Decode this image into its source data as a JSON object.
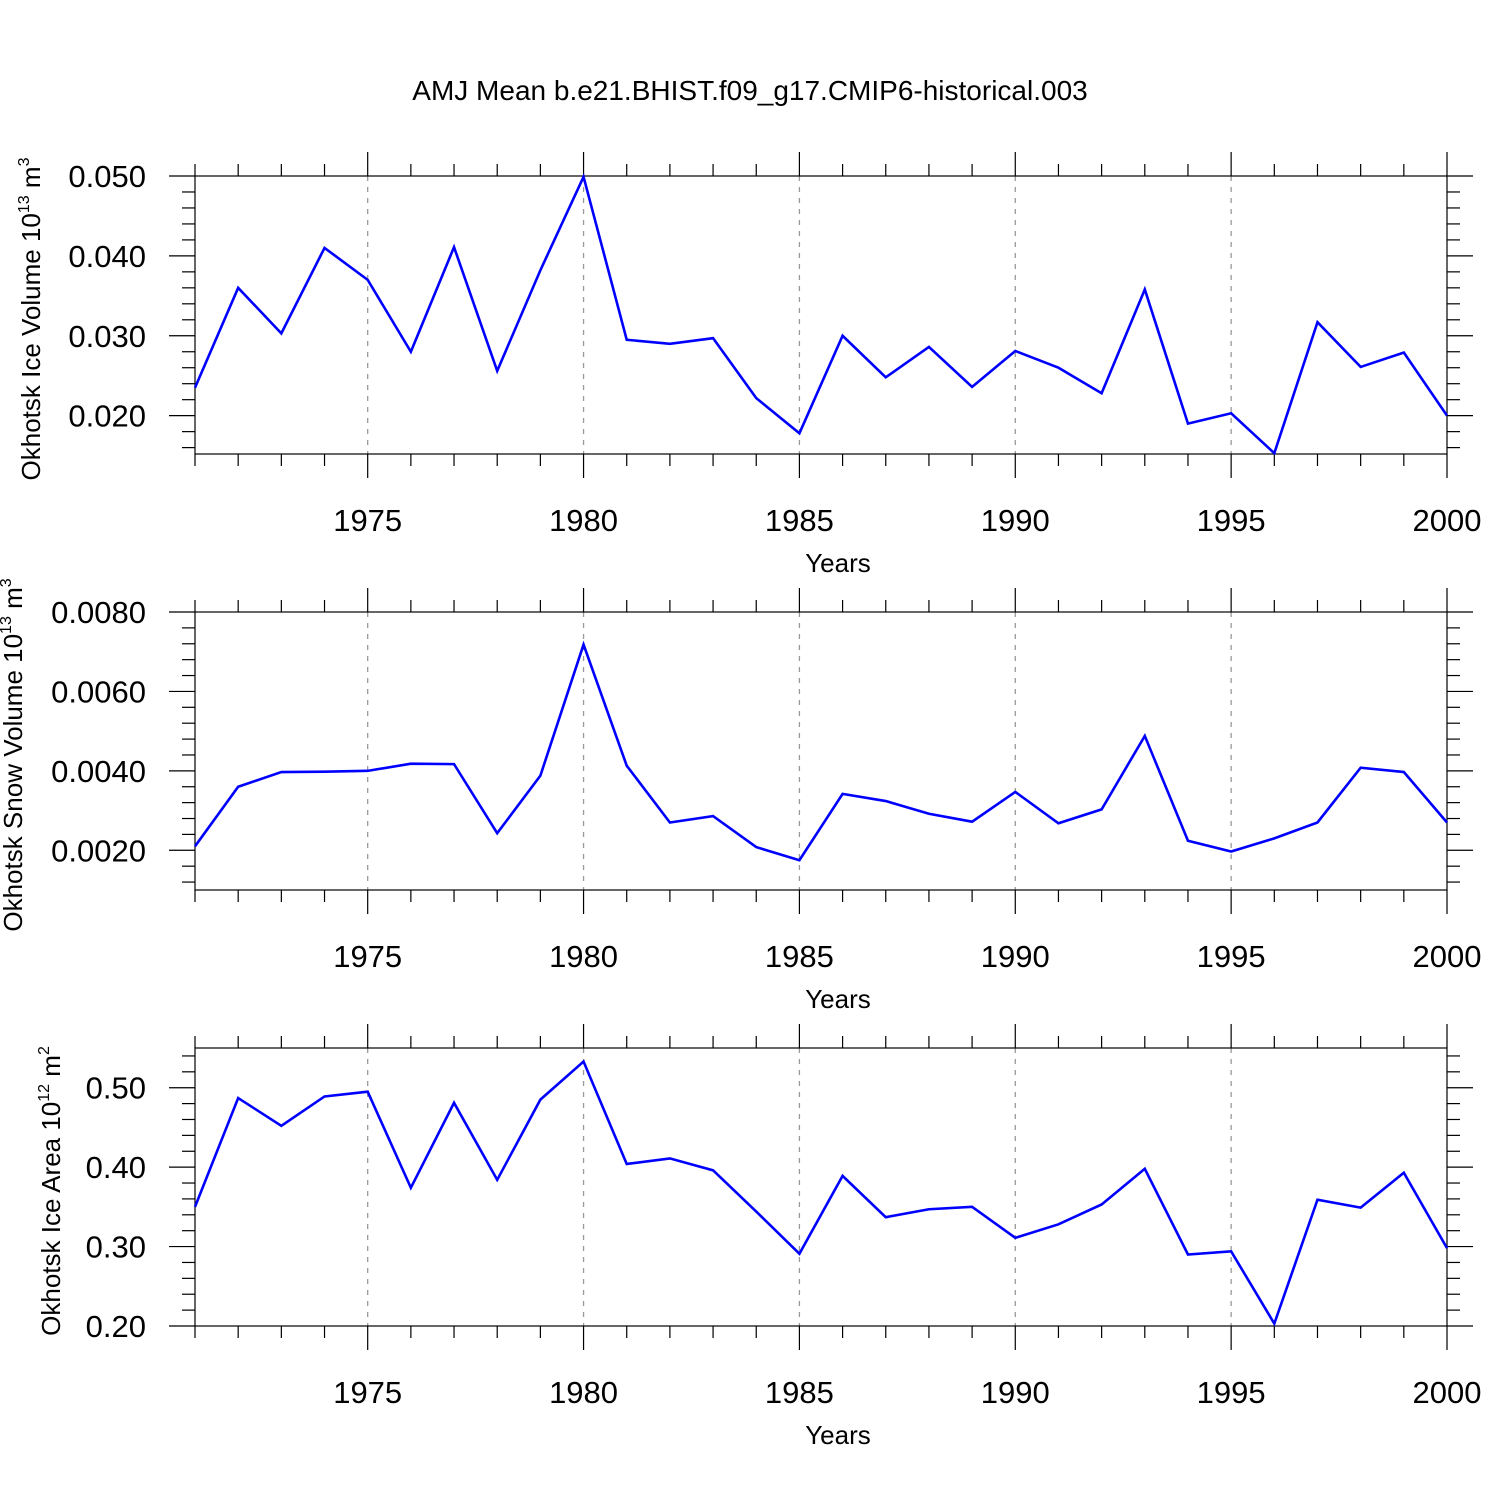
{
  "figure": {
    "title": "AMJ Mean b.e21.BHIST.f09_g17.CMIP6-historical.003",
    "line_color": "#0000ff",
    "grid_color": "#999999"
  },
  "chart_data": [
    {
      "type": "line",
      "title": "AMJ Mean b.e21.BHIST.f09_g17.CMIP6-historical.003",
      "ylabel_prefix": "Okhotsk Ice Volume 10",
      "ylabel_exp": "13",
      "ylabel_unit": " m",
      "ylabel_unit_exp": "3",
      "xlabel": "Years",
      "xlim": [
        1971,
        2000
      ],
      "ylim": [
        0.0152,
        0.05
      ],
      "xticks": [
        1975,
        1980,
        1985,
        1990,
        1995,
        2000
      ],
      "xtick_labels": [
        "1975",
        "1980",
        "1985",
        "1990",
        "1995",
        "2000"
      ],
      "yticks": [
        0.02,
        0.03,
        0.04,
        0.05
      ],
      "ytick_labels": [
        "0.020",
        "0.030",
        "0.040",
        "0.050"
      ],
      "grid_x": [
        1975,
        1980,
        1985,
        1990,
        1995
      ],
      "x": [
        1971,
        1972,
        1973,
        1974,
        1975,
        1976,
        1977,
        1978,
        1979,
        1980,
        1981,
        1982,
        1983,
        1984,
        1985,
        1986,
        1987,
        1988,
        1989,
        1990,
        1991,
        1992,
        1993,
        1994,
        1995,
        1996,
        1997,
        1998,
        1999,
        2000
      ],
      "series": [
        {
          "name": "Okhotsk Ice Volume",
          "values": [
            0.0235,
            0.036,
            0.0303,
            0.041,
            0.037,
            0.028,
            0.0411,
            0.0256,
            0.0382,
            0.0499,
            0.0295,
            0.029,
            0.0297,
            0.0222,
            0.0178,
            0.03,
            0.0248,
            0.0286,
            0.0236,
            0.0281,
            0.026,
            0.0228,
            0.0358,
            0.019,
            0.0203,
            0.0153,
            0.0317,
            0.0261,
            0.0279,
            0.02
          ]
        }
      ]
    },
    {
      "type": "line",
      "ylabel_prefix": "Okhotsk Snow Volume 10",
      "ylabel_exp": "13",
      "ylabel_unit": " m",
      "ylabel_unit_exp": "3",
      "xlabel": "Years",
      "xlim": [
        1971,
        2000
      ],
      "ylim": [
        0.001,
        0.008
      ],
      "xticks": [
        1975,
        1980,
        1985,
        1990,
        1995,
        2000
      ],
      "xtick_labels": [
        "1975",
        "1980",
        "1985",
        "1990",
        "1995",
        "2000"
      ],
      "yticks": [
        0.002,
        0.004,
        0.006,
        0.008
      ],
      "ytick_labels": [
        "0.0020",
        "0.0040",
        "0.0060",
        "0.0080"
      ],
      "grid_x": [
        1975,
        1980,
        1985,
        1990,
        1995
      ],
      "x": [
        1971,
        1972,
        1973,
        1974,
        1975,
        1976,
        1977,
        1978,
        1979,
        1980,
        1981,
        1982,
        1983,
        1984,
        1985,
        1986,
        1987,
        1988,
        1989,
        1990,
        1991,
        1992,
        1993,
        1994,
        1995,
        1996,
        1997,
        1998,
        1999,
        2000
      ],
      "series": [
        {
          "name": "Okhotsk Snow Volume",
          "values": [
            0.0021,
            0.0036,
            0.00397,
            0.00398,
            0.004,
            0.00418,
            0.00417,
            0.00243,
            0.00388,
            0.00718,
            0.00413,
            0.0027,
            0.00286,
            0.00208,
            0.00175,
            0.00342,
            0.00324,
            0.00292,
            0.00272,
            0.00347,
            0.00268,
            0.00303,
            0.00488,
            0.00224,
            0.00197,
            0.0023,
            0.0027,
            0.00408,
            0.00397,
            0.0027
          ]
        }
      ]
    },
    {
      "type": "line",
      "ylabel_prefix": "Okhotsk Ice Area 10",
      "ylabel_exp": "12",
      "ylabel_unit": " m",
      "ylabel_unit_exp": "2",
      "xlabel": "Years",
      "xlim": [
        1971,
        2000
      ],
      "ylim": [
        0.2,
        0.55
      ],
      "xticks": [
        1975,
        1980,
        1985,
        1990,
        1995,
        2000
      ],
      "xtick_labels": [
        "1975",
        "1980",
        "1985",
        "1990",
        "1995",
        "2000"
      ],
      "yticks": [
        0.2,
        0.3,
        0.4,
        0.5
      ],
      "ytick_labels": [
        "0.20",
        "0.30",
        "0.40",
        "0.50"
      ],
      "grid_x": [
        1975,
        1980,
        1985,
        1990,
        1995
      ],
      "x": [
        1971,
        1972,
        1973,
        1974,
        1975,
        1976,
        1977,
        1978,
        1979,
        1980,
        1981,
        1982,
        1983,
        1984,
        1985,
        1986,
        1987,
        1988,
        1989,
        1990,
        1991,
        1992,
        1993,
        1994,
        1995,
        1996,
        1997,
        1998,
        1999,
        2000
      ],
      "series": [
        {
          "name": "Okhotsk Ice Area",
          "values": [
            0.35,
            0.487,
            0.452,
            0.489,
            0.495,
            0.374,
            0.481,
            0.384,
            0.485,
            0.533,
            0.404,
            0.411,
            0.396,
            0.344,
            0.291,
            0.389,
            0.337,
            0.347,
            0.35,
            0.311,
            0.328,
            0.353,
            0.398,
            0.29,
            0.294,
            0.203,
            0.359,
            0.349,
            0.393,
            0.298
          ]
        }
      ]
    }
  ]
}
